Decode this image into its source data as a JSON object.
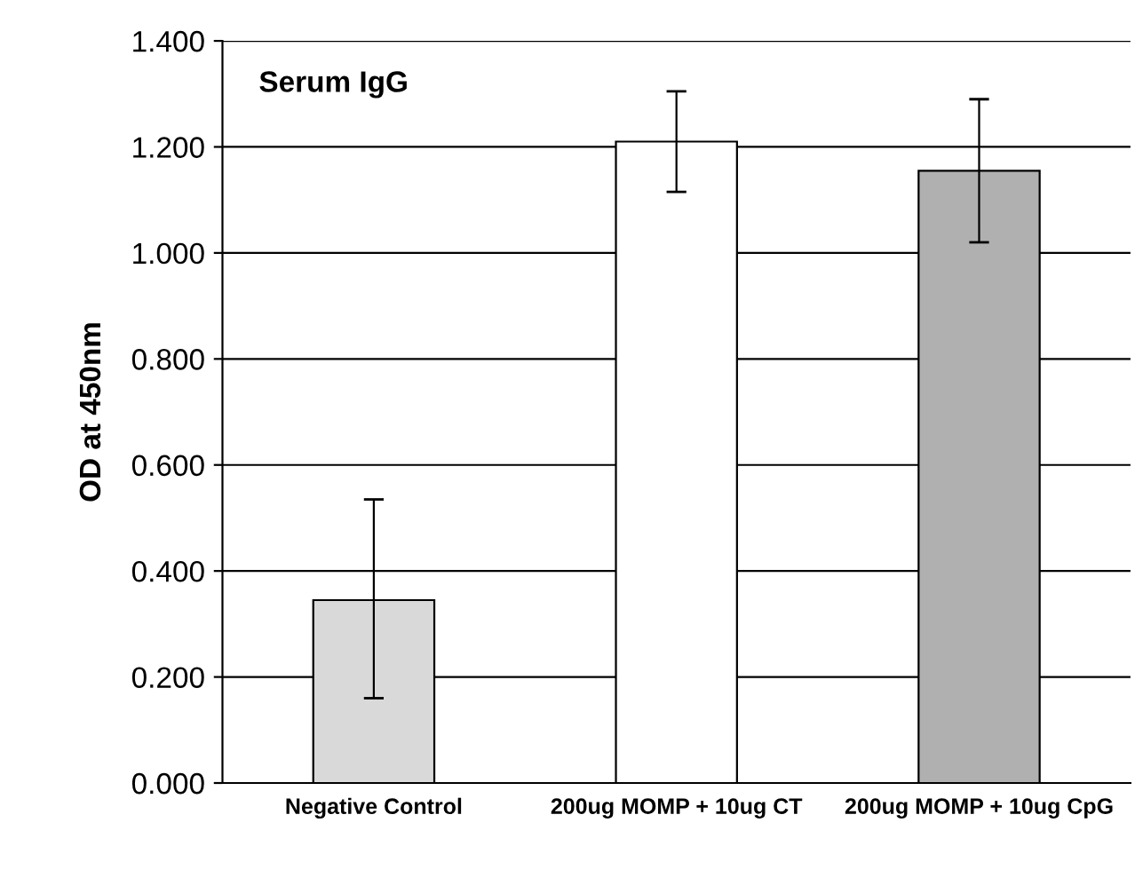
{
  "chart_data": {
    "type": "bar",
    "title": "Serum IgG",
    "ylabel": "OD at 450nm",
    "categories": [
      "Negative Control",
      "200ug MOMP + 10ug CT",
      "200ug MOMP + 10ug CpG"
    ],
    "values": [
      0.345,
      1.21,
      1.155
    ],
    "errors": [
      [
        0.16,
        0.535
      ],
      [
        1.115,
        1.305
      ],
      [
        1.02,
        1.29
      ]
    ],
    "colors": [
      "#d9d9d9",
      "#ffffff",
      "#b0b0b0"
    ],
    "ylim": [
      0,
      1.4
    ],
    "yticks": [
      {
        "value": 0,
        "label": "0.000"
      },
      {
        "value": 0.2,
        "label": "0.200"
      },
      {
        "value": 0.4,
        "label": "0.400"
      },
      {
        "value": 0.6,
        "label": "0.600"
      },
      {
        "value": 0.8,
        "label": "0.800"
      },
      {
        "value": 1.0,
        "label": "1.000"
      },
      {
        "value": 1.2,
        "label": "1.200"
      },
      {
        "value": 1.4,
        "label": "1.400"
      }
    ],
    "grid": "y",
    "legend": false
  }
}
